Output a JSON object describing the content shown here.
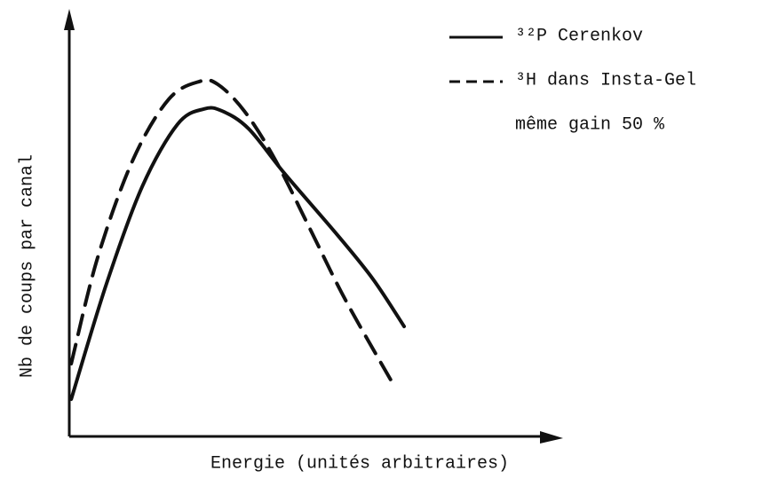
{
  "chart_data": {
    "type": "line",
    "xlabel": "Energie (unités arbitraires)",
    "ylabel": "Nb de coups par canal",
    "annotation": "même gain 50 %",
    "xlim": [
      0,
      100
    ],
    "ylim": [
      0,
      100
    ],
    "series": [
      {
        "name": "³²P Cerenkov",
        "color": "#111111",
        "dash": "solid",
        "x": [
          0.4,
          7.6,
          14.9,
          22.1,
          27.5,
          31.2,
          36.6,
          43.8,
          54.7,
          62.0,
          68.3
        ],
        "values": [
          8.8,
          36.1,
          59.1,
          73.8,
          77.4,
          76.9,
          72.7,
          62.3,
          47.6,
          37.1,
          26.0
        ]
      },
      {
        "name": "³H dans Insta-Gel",
        "color": "#111111",
        "dash": "dashed",
        "x": [
          0.4,
          5.8,
          13.0,
          20.3,
          26.6,
          30.3,
          35.7,
          42.0,
          49.3,
          56.5,
          66.5
        ],
        "values": [
          17.2,
          42.3,
          65.4,
          79.7,
          83.9,
          83.2,
          76.9,
          65.4,
          48.6,
          31.9,
          11.5
        ]
      }
    ]
  }
}
